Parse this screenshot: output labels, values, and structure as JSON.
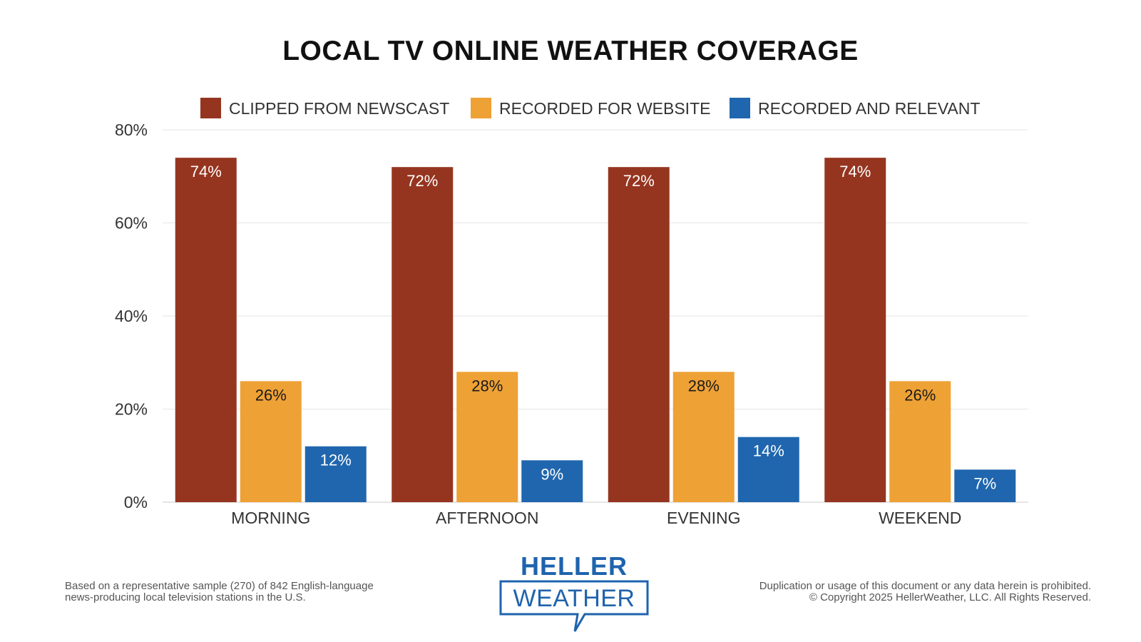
{
  "chart_data": {
    "type": "bar",
    "title": "LOCAL TV ONLINE WEATHER COVERAGE",
    "categories": [
      "MORNING",
      "AFTERNOON",
      "EVENING",
      "WEEKEND"
    ],
    "series": [
      {
        "name": "CLIPPED FROM NEWSCAST",
        "color": "#953520",
        "values": [
          74,
          72,
          72,
          74
        ],
        "labels": [
          "74%",
          "72%",
          "72%",
          "74%"
        ]
      },
      {
        "name": "RECORDED FOR WEBSITE",
        "color": "#eea135",
        "values": [
          26,
          28,
          28,
          26
        ],
        "labels": [
          "26%",
          "28%",
          "28%",
          "26%"
        ]
      },
      {
        "name": "RECORDED AND RELEVANT",
        "color": "#2066ae",
        "values": [
          12,
          9,
          14,
          7
        ],
        "labels": [
          "12%",
          "9%",
          "14%",
          "7%"
        ]
      }
    ],
    "yticks": [
      0,
      20,
      40,
      60,
      80
    ],
    "ytick_labels": [
      "0%",
      "20%",
      "40%",
      "60%",
      "80%"
    ],
    "ylim": [
      0,
      80
    ],
    "grid": true,
    "legend": "top-center"
  },
  "footer": {
    "note_line1": "Based on a representative sample (270) of 842 English-language",
    "note_line2": "news-producing local television stations in the U.S.",
    "rights_line1": "Duplication or usage of this document or any data herein is prohibited.",
    "rights_line2": "© Copyright 2025 HellerWeather, LLC. All Rights Reserved."
  },
  "logo": {
    "top_text": "HELLER",
    "bottom_text": "WEATHER",
    "color": "#1f63ad"
  }
}
